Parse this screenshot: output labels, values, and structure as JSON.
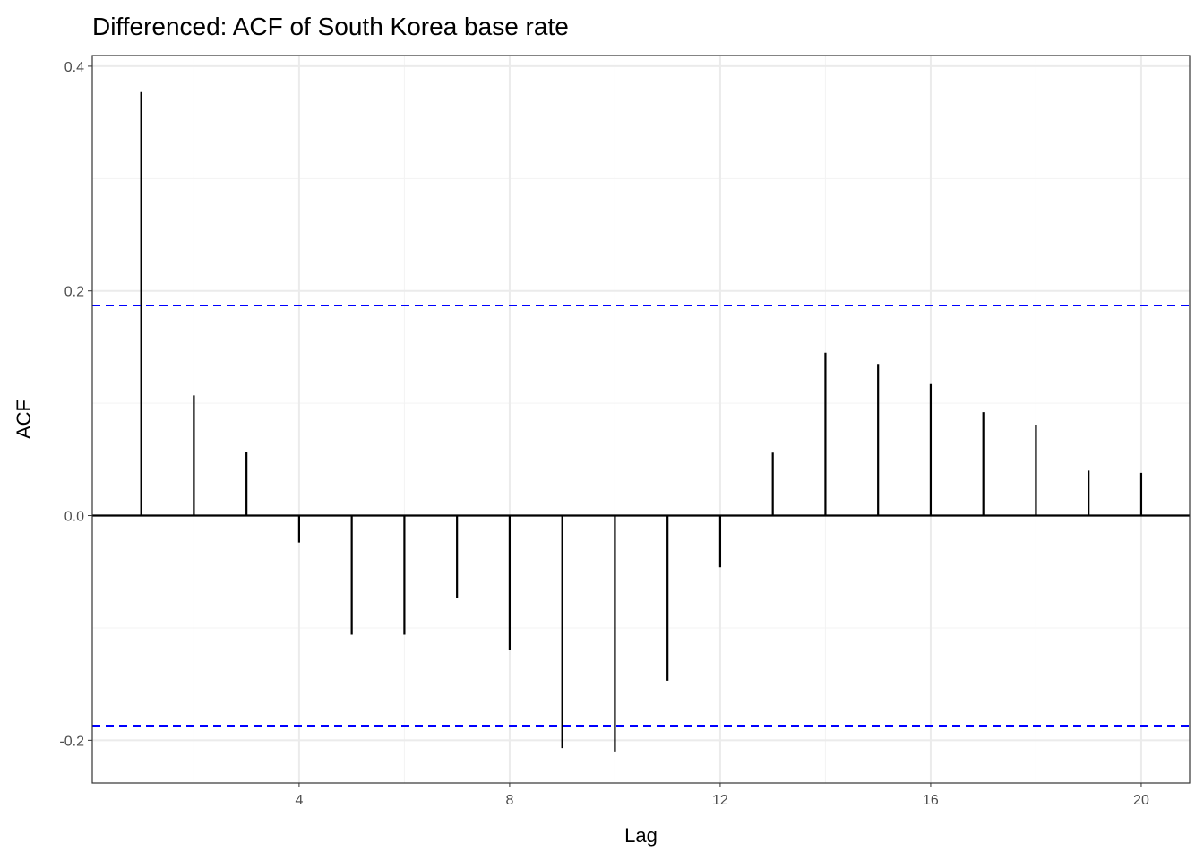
{
  "chart_data": {
    "type": "bar",
    "title": "Differenced: ACF of South Korea base rate",
    "xlabel": "Lag",
    "ylabel": "ACF",
    "x": [
      1,
      2,
      3,
      4,
      5,
      6,
      7,
      8,
      9,
      10,
      11,
      12,
      13,
      14,
      15,
      16,
      17,
      18,
      19,
      20
    ],
    "values": [
      0.377,
      0.107,
      0.057,
      -0.024,
      -0.106,
      -0.106,
      -0.073,
      -0.12,
      -0.207,
      -0.21,
      -0.147,
      -0.046,
      0.056,
      0.145,
      0.135,
      0.117,
      0.092,
      0.081,
      0.04,
      0.038
    ],
    "confidence_bounds": [
      0.187,
      -0.187
    ],
    "xlim": [
      0.07,
      20.92
    ],
    "ylim": [
      -0.238,
      0.4095
    ],
    "xticks": [
      4,
      8,
      12,
      16,
      20
    ],
    "xtick_labels": [
      "4",
      "8",
      "12",
      "16",
      "20"
    ],
    "yticks": [
      0.4,
      0.2,
      0.0,
      -0.2
    ],
    "ytick_labels": [
      "0.4",
      "0.2",
      "0.0",
      "-0.2"
    ],
    "grid": true,
    "colors": {
      "bars": "#000000",
      "ci": "#0000ff",
      "grid": "#ebebeb"
    }
  }
}
